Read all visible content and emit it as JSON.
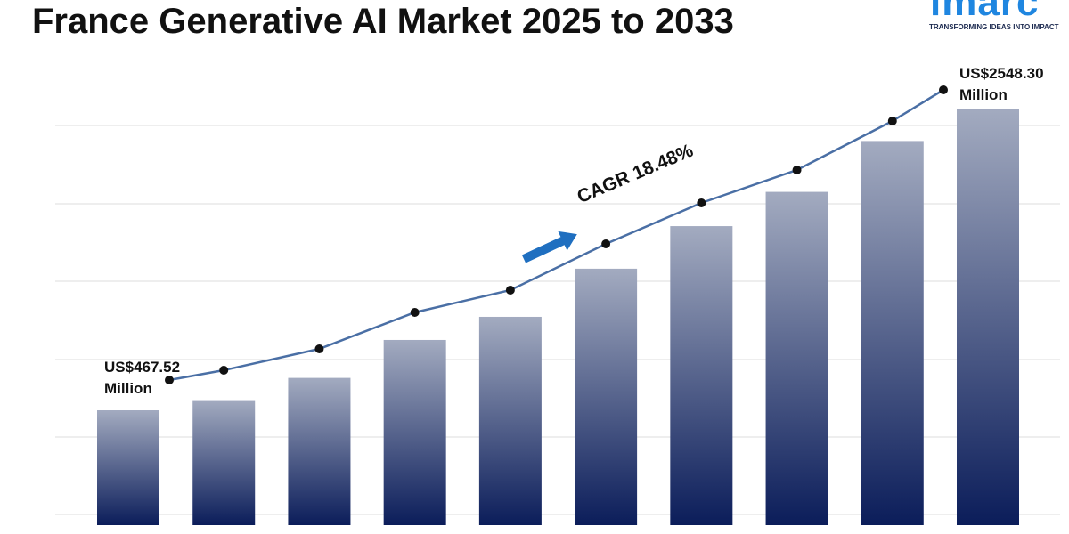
{
  "chart_data": {
    "type": "bar",
    "title": "France Generative AI Market 2025 to 2033",
    "logo": "imarc",
    "tagline": "TRANSFORMING IDEAS INTO IMPACT",
    "annotation": "CAGR 18.48%",
    "categories": [
      null,
      null,
      null,
      null,
      null,
      null,
      null,
      null,
      null,
      null
    ],
    "values": [
      467.52,
      537.7,
      690.9,
      952.6,
      1112.2,
      1444.1,
      1737.7,
      1973.9,
      2324.9,
      2548.3
    ],
    "value_labels": [
      "US$467.52 Million",
      null,
      null,
      null,
      null,
      null,
      null,
      null,
      null,
      "US$2548.30 Million"
    ],
    "line_color": "#4a6fa5",
    "bar_gradient": [
      "#a3abc0",
      "#0b1d5a"
    ]
  }
}
